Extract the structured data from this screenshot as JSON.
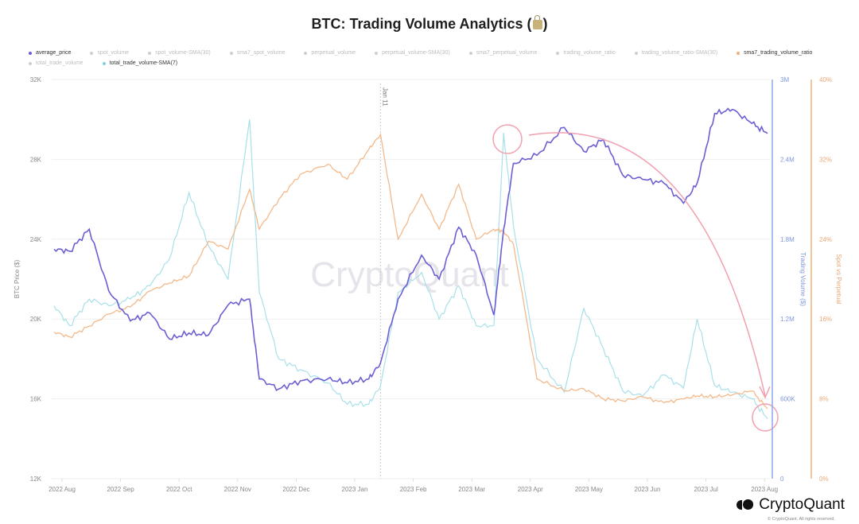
{
  "title": "BTC: Trading Volume Analytics (",
  "title_suffix": ")",
  "title_icon": "lock-icon",
  "legend": {
    "row1": [
      {
        "label": "average_price",
        "active": true,
        "color": "#6b5fd3",
        "marker": "circle"
      },
      {
        "label": "spot_volume",
        "active": false,
        "marker": "diamond"
      },
      {
        "label": "spot_volume-SMA(30)",
        "active": false,
        "marker": "square"
      },
      {
        "label": "sma7_spot_volume",
        "active": false,
        "marker": "triangle-up"
      },
      {
        "label": "perpetual_volume",
        "active": false,
        "marker": "triangle-down"
      },
      {
        "label": "perpetual_volume-SMA(30)",
        "active": false,
        "marker": "circle"
      },
      {
        "label": "sma7_perpetual_volume",
        "active": false,
        "marker": "diamond"
      },
      {
        "label": "trading_volume_ratio",
        "active": false,
        "marker": "square"
      },
      {
        "label": "trading_volume_ratio-SMA(30)",
        "active": false,
        "marker": "triangle-up"
      },
      {
        "label": "sma7_trading_volume_ratio",
        "active": true,
        "color": "#f0b07a",
        "marker": "triangle-down"
      }
    ],
    "row2": [
      {
        "label": "total_trade_volume",
        "active": false,
        "marker": "circle"
      },
      {
        "label": "total_trade_volume-SMA(7)",
        "active": true,
        "color": "#7ed3e6",
        "marker": "diamond"
      }
    ]
  },
  "axes": {
    "left_label": "BTC Price ($)",
    "left_ticks": [
      "32K",
      "28K",
      "24K",
      "20K",
      "16K",
      "12K"
    ],
    "right1_label": "Trading Volume ($)",
    "right1_ticks": [
      "3M",
      "2.4M",
      "1.8M",
      "1.2M",
      "600K",
      "0"
    ],
    "right2_label": "Spot vs Perpetual",
    "right2_ticks": [
      "40%",
      "32%",
      "24%",
      "16%",
      "8%",
      "0%"
    ],
    "x_ticks": [
      "2022 Aug",
      "2022 Sep",
      "2022 Oct",
      "2022 Nov",
      "2022 Dec",
      "2023 Jan",
      "2023 Feb",
      "2023 Mar",
      "2023 Apr",
      "2023 May",
      "2023 Jun",
      "2023 Jul",
      "2023 Aug"
    ],
    "marker_label": "Jan 11"
  },
  "watermark": "CryptoQuant",
  "brand": "CryptoQuant",
  "copyright": "© CryptoQuant. All rights reserved.",
  "colors": {
    "price": "#6b5fd3",
    "volume": "#a8e0ea",
    "ratio": "#f3b98a",
    "annotation": "#f2a0b0",
    "volume_axis": "#8ea8e6",
    "ratio_axis": "#f0b07a"
  },
  "chart_data": {
    "type": "line",
    "title": "BTC: Trading Volume Analytics",
    "xlabel": "",
    "x": [
      "2022-07-28",
      "2022-08-05",
      "2022-08-15",
      "2022-08-25",
      "2022-09-05",
      "2022-09-15",
      "2022-09-25",
      "2022-10-05",
      "2022-10-15",
      "2022-10-25",
      "2022-11-05",
      "2022-11-10",
      "2022-11-20",
      "2022-12-01",
      "2022-12-15",
      "2022-12-25",
      "2023-01-05",
      "2023-01-11",
      "2023-01-20",
      "2023-02-01",
      "2023-02-10",
      "2023-02-20",
      "2023-03-01",
      "2023-03-10",
      "2023-03-15",
      "2023-03-20",
      "2023-04-01",
      "2023-04-15",
      "2023-04-25",
      "2023-05-05",
      "2023-05-15",
      "2023-05-25",
      "2023-06-05",
      "2023-06-15",
      "2023-06-22",
      "2023-07-01",
      "2023-07-10",
      "2023-07-20",
      "2023-07-28"
    ],
    "series": [
      {
        "name": "average_price",
        "axis": "BTC Price ($)",
        "values": [
          23500,
          23400,
          24500,
          21400,
          19900,
          20300,
          19000,
          19300,
          19200,
          20700,
          21000,
          17000,
          16500,
          16900,
          17000,
          16800,
          17000,
          17800,
          21000,
          23200,
          22000,
          24600,
          23200,
          20200,
          24500,
          27800,
          28200,
          29600,
          28400,
          29000,
          27200,
          27000,
          26800,
          25800,
          26800,
          30300,
          30500,
          29800,
          29300
        ]
      },
      {
        "name": "total_trade_volume-SMA(7)",
        "axis": "Trading Volume ($)",
        "values": [
          1300000,
          1150000,
          1350000,
          1300000,
          1350000,
          1450000,
          1650000,
          2150000,
          1750000,
          1500000,
          2700000,
          1400000,
          900000,
          820000,
          720000,
          560000,
          560000,
          700000,
          1400000,
          1550000,
          1200000,
          1450000,
          1150000,
          1150000,
          2600000,
          1900000,
          900000,
          650000,
          1280000,
          980000,
          660000,
          620000,
          780000,
          680000,
          1200000,
          700000,
          650000,
          600000,
          450000
        ]
      },
      {
        "name": "sma7_trading_volume_ratio",
        "axis": "Spot vs Perpetual",
        "values": [
          14.7,
          14.2,
          15.3,
          16.5,
          17.2,
          18.8,
          19.6,
          20.3,
          23.8,
          23.0,
          29.0,
          25.0,
          28.0,
          30.5,
          31.5,
          30.0,
          33.0,
          34.5,
          24.0,
          28.5,
          25.0,
          29.5,
          24.0,
          25.0,
          24.8,
          23.5,
          10.0,
          8.8,
          9.0,
          8.0,
          7.8,
          8.2,
          7.6,
          8.0,
          8.3,
          8.2,
          8.4,
          8.8,
          7.0
        ]
      }
    ],
    "axis_ranges": {
      "left": [
        12000,
        32000
      ],
      "right_volume": [
        0,
        3000000
      ],
      "right_ratio": [
        0,
        40
      ]
    },
    "annotations": [
      {
        "type": "circle",
        "note": "volume peak mid-March 2023"
      },
      {
        "type": "arrow",
        "note": "curved arrow from March peak down to end of July 2023"
      },
      {
        "type": "circle",
        "note": "volume low late July 2023"
      }
    ],
    "vertical_marker": "Jan 11",
    "grid": true,
    "legend_position": "top"
  }
}
